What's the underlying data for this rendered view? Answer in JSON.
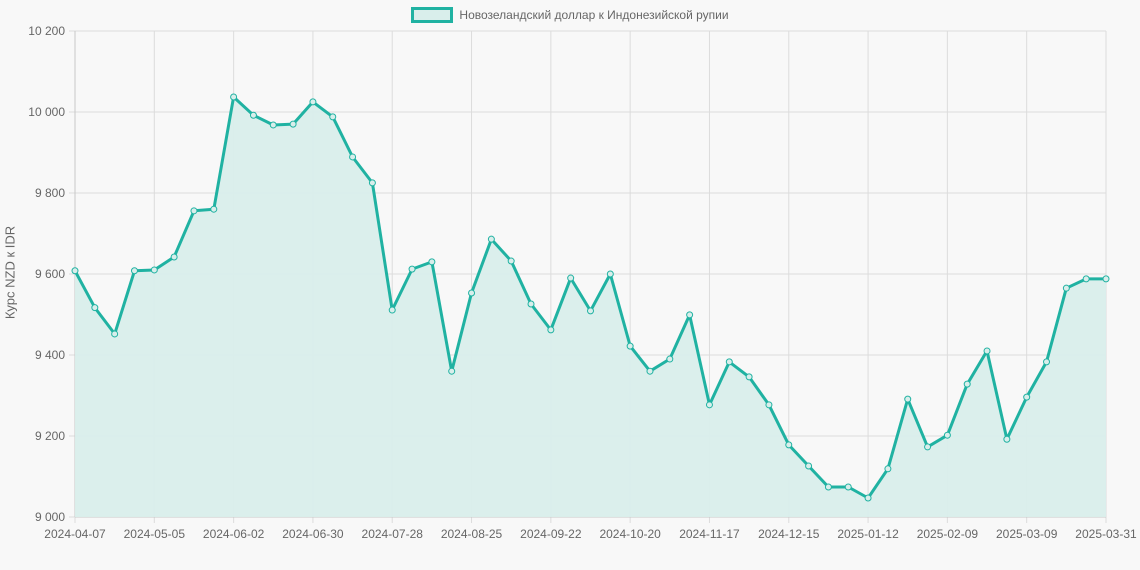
{
  "legend": {
    "label": "Новозеландский доллар к Индонезийской рупии",
    "color": "#20b2a2",
    "fill": "#d9eeeb"
  },
  "chart_data": {
    "type": "line",
    "title": "",
    "legend": [
      "Новозеландский доллар к Индонезийской рупии"
    ],
    "legend_position": "top",
    "xlabel": "",
    "ylabel": "Курс NZD к IDR",
    "ylim": [
      9000,
      10200
    ],
    "yticks": [
      "9 000",
      "9 200",
      "9 400",
      "9 600",
      "9 800",
      "10 000",
      "10 200"
    ],
    "xticks": [
      "2024-04-07",
      "2024-05-05",
      "2024-06-02",
      "2024-06-30",
      "2024-07-28",
      "2024-08-25",
      "2024-09-22",
      "2024-10-20",
      "2024-11-17",
      "2024-12-15",
      "2025-01-12",
      "2025-02-09",
      "2025-03-09",
      "2025-03-31"
    ],
    "grid": true,
    "fill": true,
    "series": [
      {
        "name": "Новозеландский доллар к Индонезийской рупии",
        "values": [
          9608,
          9517,
          9452,
          9608,
          9610,
          9642,
          9756,
          9760,
          10037,
          9992,
          9968,
          9970,
          10025,
          9988,
          9889,
          9825,
          9511,
          9612,
          9630,
          9360,
          9553,
          9686,
          9632,
          9526,
          9462,
          9590,
          9509,
          9600,
          9422,
          9360,
          9390,
          9499,
          9277,
          9383,
          9346,
          9277,
          9178,
          9126,
          9074,
          9074,
          9047,
          9119,
          9291,
          9173,
          9202,
          9328,
          9410,
          9192,
          9296,
          9383,
          9565,
          9588,
          9588
        ]
      }
    ]
  }
}
